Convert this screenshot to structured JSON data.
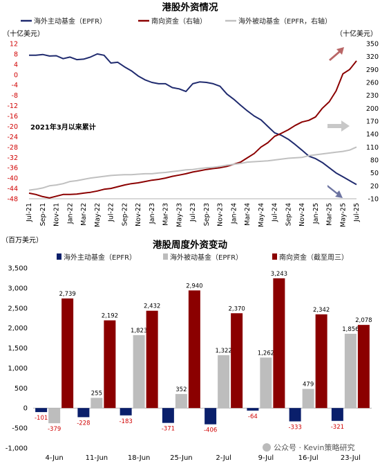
{
  "charts": [
    {
      "title": "港股外资情况",
      "unit_left": "（十亿美元）",
      "unit_right": "（十亿美元）",
      "annotation": "2021年3月以来累计",
      "legend": [
        {
          "label": "海外主动基金（EPFR）",
          "color": "#1f2a6e"
        },
        {
          "label": "南向资金（右轴）",
          "color": "#8b0000"
        },
        {
          "label": "海外被动基金（EPFR，右轴）",
          "color": "#c0c0c0"
        }
      ]
    },
    {
      "title": "港股周度外资变动",
      "unit": "（百万美元）",
      "legend": [
        {
          "label": "海外主动基金（EPFR）",
          "color": "#0a1f6b"
        },
        {
          "label": "海外被动基金（EPFR）",
          "color": "#bdbdbd"
        },
        {
          "label": "南向资金（截至周三）",
          "color": "#8b0000"
        }
      ]
    }
  ],
  "watermark": "公众号 · Kevin策略研究",
  "chart_data": [
    {
      "type": "line",
      "title": "港股外资情况",
      "x_tick_labels": [
        "Jul-21",
        "Sep-21",
        "Nov-21",
        "Jan-22",
        "Mar-22",
        "May-22",
        "Jul-22",
        "Sep-22",
        "Nov-22",
        "Jan-23",
        "Mar-23",
        "May-23",
        "Jul-23",
        "Sep-23",
        "Nov-23",
        "Jan-24",
        "Mar-24",
        "May-24",
        "Jul-24",
        "Sep-24",
        "Nov-24",
        "Jan-25",
        "Mar-25",
        "May-25",
        "Jul-25"
      ],
      "y_left": {
        "ticks": [
          12,
          8,
          4,
          0,
          -4,
          -8,
          -12,
          -16,
          -20,
          -24,
          -28,
          -32,
          -36,
          -40,
          -44,
          -48
        ],
        "ylim": [
          -48,
          12
        ]
      },
      "y_right": {
        "ticks": [
          350,
          320,
          290,
          260,
          230,
          200,
          170,
          140,
          110,
          80,
          50,
          20,
          -10
        ],
        "ylim": [
          -10,
          350
        ]
      },
      "series": [
        {
          "name": "海外主动基金（EPFR）",
          "axis": "left",
          "color": "#1f2a6e",
          "x": [
            0,
            1,
            2,
            3,
            4,
            5,
            6,
            7,
            8,
            9,
            10,
            11,
            12,
            13,
            14,
            15,
            16,
            17,
            18,
            19,
            20,
            21,
            22,
            23,
            24,
            25,
            26,
            27,
            28,
            29,
            30,
            31,
            32,
            33,
            34,
            35,
            36,
            37,
            38,
            39,
            40,
            41,
            42,
            43,
            44,
            45,
            46,
            47,
            48
          ],
          "y": [
            7.5,
            7.5,
            7.8,
            7.2,
            7.3,
            6.2,
            6.8,
            5.8,
            6,
            6.8,
            8,
            7.5,
            4.5,
            4.8,
            3,
            1.5,
            -0.5,
            -2,
            -3,
            -3.5,
            -3.5,
            -5,
            -5.5,
            -6.5,
            -3.5,
            -2.8,
            -3,
            -3.5,
            -4.5,
            -7.5,
            -9.5,
            -11.8,
            -14,
            -16,
            -17.5,
            -20,
            -22.5,
            -23.5,
            -25,
            -27,
            -29.2,
            -31.5,
            -32.5,
            -34,
            -36,
            -38,
            -39.5,
            -41,
            -42.5
          ]
        },
        {
          "name": "南向资金（右轴）",
          "axis": "right",
          "color": "#8b0000",
          "x": [
            0,
            1,
            2,
            3,
            4,
            5,
            6,
            7,
            8,
            9,
            10,
            11,
            12,
            13,
            14,
            15,
            16,
            17,
            18,
            19,
            20,
            21,
            22,
            23,
            24,
            25,
            26,
            27,
            28,
            29,
            30,
            31,
            32,
            33,
            34,
            35,
            36,
            37,
            38,
            39,
            40,
            41,
            42,
            43,
            44,
            45,
            46,
            47,
            48
          ],
          "y": [
            3,
            0,
            -5,
            -8,
            -4,
            0,
            0,
            1,
            3,
            5,
            8,
            12,
            14,
            18,
            22,
            25,
            27,
            30,
            33,
            35,
            38,
            42,
            45,
            48,
            52,
            55,
            58,
            60,
            62,
            65,
            70,
            75,
            85,
            95,
            110,
            120,
            135,
            142,
            150,
            160,
            168,
            172,
            180,
            200,
            215,
            240,
            280,
            290,
            310
          ]
        },
        {
          "name": "海外被动基金（EPFR，右轴）",
          "axis": "right",
          "color": "#c0c0c0",
          "x": [
            0,
            1,
            2,
            3,
            4,
            5,
            6,
            7,
            8,
            9,
            10,
            11,
            12,
            13,
            14,
            15,
            16,
            17,
            18,
            19,
            20,
            21,
            22,
            23,
            24,
            25,
            26,
            27,
            28,
            29,
            30,
            31,
            32,
            33,
            34,
            35,
            36,
            37,
            38,
            39,
            40,
            41,
            42,
            43,
            44,
            45,
            46,
            47,
            48
          ],
          "y": [
            10,
            12,
            15,
            20,
            22,
            25,
            30,
            32,
            35,
            38,
            40,
            42,
            44,
            45,
            46,
            46,
            47,
            48,
            48,
            50,
            51,
            53,
            55,
            57,
            58,
            60,
            62,
            63,
            65,
            68,
            70,
            72,
            75,
            76,
            77,
            78,
            80,
            82,
            84,
            85,
            86,
            90,
            92,
            94,
            96,
            98,
            100,
            103,
            110
          ]
        }
      ]
    },
    {
      "type": "bar",
      "title": "港股周度外资变动",
      "categories": [
        "4-Jun",
        "11-Jun",
        "18-Jun",
        "25-Jun",
        "2-Jul",
        "9-Jul",
        "16-Jul",
        "23-Jul"
      ],
      "ylim": [
        -1000,
        3500
      ],
      "y_ticks": [
        3500,
        3000,
        2500,
        2000,
        1500,
        1000,
        500,
        0,
        -500,
        -1000
      ],
      "series": [
        {
          "name": "海外主动基金（EPFR）",
          "color": "#0a1f6b",
          "values": [
            -101,
            -228,
            -183,
            -371,
            -406,
            -64,
            -333,
            -321
          ]
        },
        {
          "name": "海外被动基金（EPFR）",
          "color": "#bdbdbd",
          "values": [
            -379,
            255,
            1823,
            352,
            1322,
            1262,
            479,
            1856
          ]
        },
        {
          "name": "南向资金（截至周三）",
          "color": "#8b0000",
          "values": [
            2739,
            2192,
            2432,
            2940,
            2370,
            3243,
            2342,
            2078
          ]
        }
      ]
    }
  ]
}
